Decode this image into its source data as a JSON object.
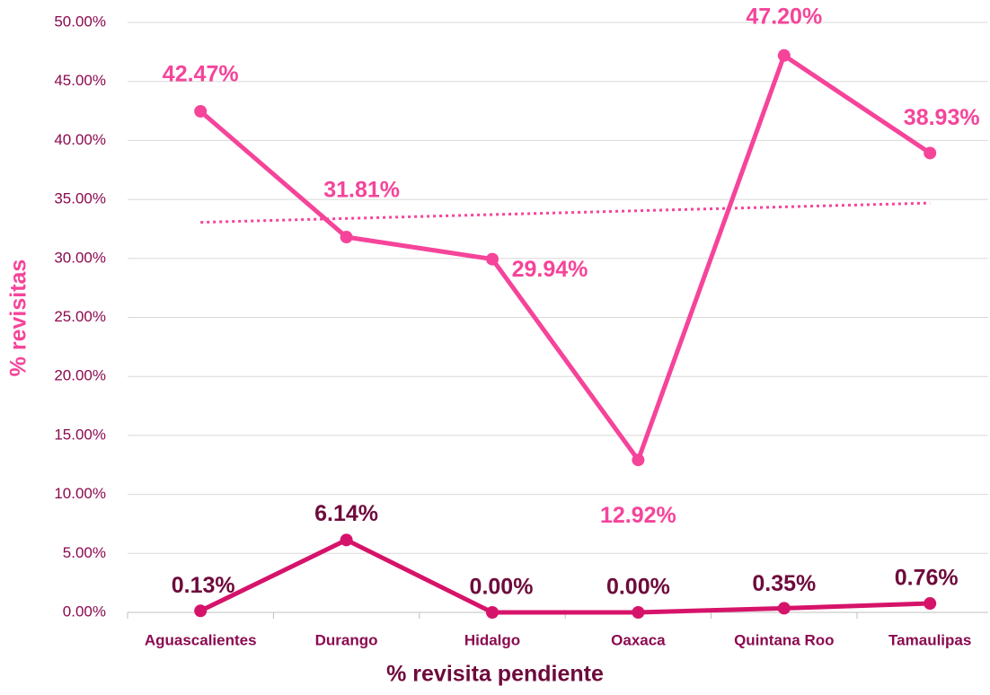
{
  "chart_data": {
    "type": "line",
    "x_label": "% revisita pendiente",
    "y_label": "% revisitas",
    "categories": [
      "Aguascalientes",
      "Durango",
      "Hidalgo",
      "Oaxaca",
      "Quintana Roo",
      "Tamaulipas"
    ],
    "series": [
      {
        "color": "#f5449a",
        "values": [
          42.47,
          31.81,
          29.94,
          12.92,
          47.2,
          38.93
        ],
        "value_labels": [
          "42.47%",
          "31.81%",
          "29.94%",
          "12.92%",
          "47.20%",
          "38.93%"
        ],
        "trendline": true
      },
      {
        "color": "#d6136a",
        "label_color": "#6e0a3c",
        "values": [
          0.13,
          6.14,
          0.0,
          0.0,
          0.35,
          0.76
        ],
        "value_labels": [
          "0.13%",
          "6.14%",
          "0.00%",
          "0.00%",
          "0.35%",
          "0.76%"
        ]
      }
    ],
    "ylim": [
      0,
      50
    ],
    "yticks": [
      {
        "value": 0,
        "label": "0.00%"
      },
      {
        "value": 5,
        "label": "5.00%"
      },
      {
        "value": 10,
        "label": "10.00%"
      },
      {
        "value": 15,
        "label": "15.00%"
      },
      {
        "value": 20,
        "label": "20.00%"
      },
      {
        "value": 25,
        "label": "25.00%"
      },
      {
        "value": 30,
        "label": "30.00%"
      },
      {
        "value": 35,
        "label": "35.00%"
      },
      {
        "value": 40,
        "label": "40.00%"
      },
      {
        "value": 45,
        "label": "45.00%"
      },
      {
        "value": 50,
        "label": "50.00%"
      }
    ],
    "grid": true
  }
}
